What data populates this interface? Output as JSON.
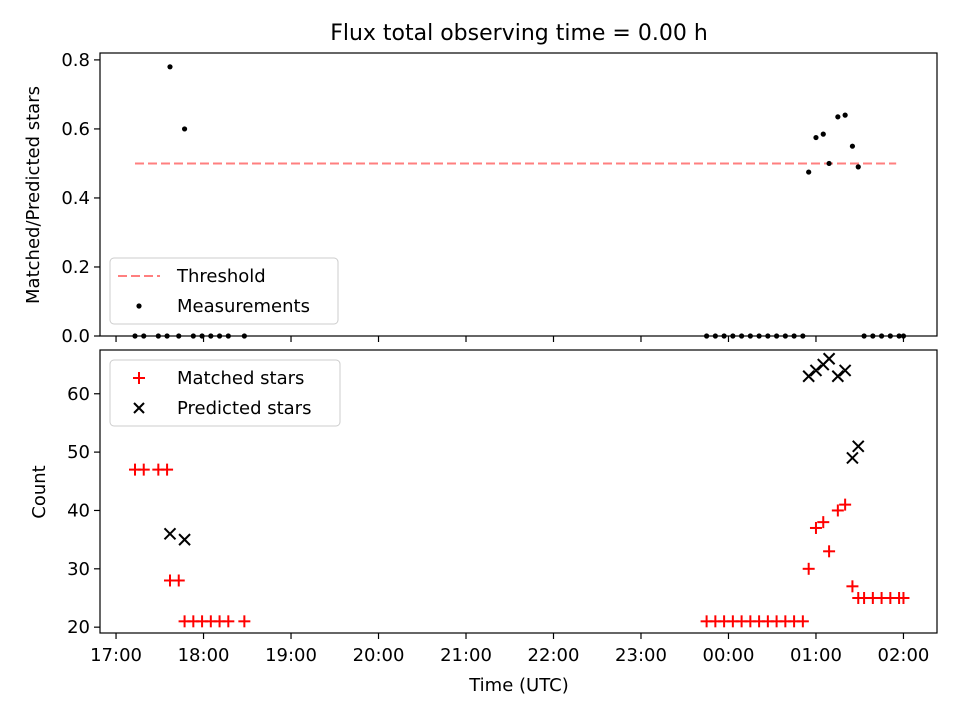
{
  "figure": {
    "title": "Flux total observing time = 0.00 h"
  },
  "chart_data": [
    {
      "type": "scatter",
      "xlabel": "",
      "ylabel": "Matched/Predicted stars",
      "ylim": [
        0.0,
        0.82
      ],
      "yticks": [
        0.0,
        0.2,
        0.4,
        0.6,
        0.8
      ],
      "ytick_labels": [
        "0.0",
        "0.2",
        "0.4",
        "0.6",
        "0.8"
      ],
      "x_range": [
        "16:49",
        "02:23"
      ],
      "xticks": [
        "17:00",
        "18:00",
        "19:00",
        "20:00",
        "21:00",
        "22:00",
        "23:00",
        "00:00",
        "01:00",
        "02:00"
      ],
      "xtick_labels_shown": false,
      "legend_position": "lower-left",
      "threshold": {
        "name": "Threshold",
        "value": 0.5,
        "x_start": "17:13",
        "x_end": "01:55",
        "color": "#ff7f7f",
        "style": "dashed"
      },
      "series": [
        {
          "name": "Measurements",
          "marker": "dot",
          "color": "#000000",
          "points": [
            [
              "17:13",
              0.0
            ],
            [
              "17:19",
              0.0
            ],
            [
              "17:29",
              0.0
            ],
            [
              "17:35",
              0.0
            ],
            [
              "17:37",
              0.78
            ],
            [
              "17:43",
              0.0
            ],
            [
              "17:47",
              0.6
            ],
            [
              "17:53",
              0.0
            ],
            [
              "17:59",
              0.0
            ],
            [
              "18:05",
              0.0
            ],
            [
              "18:11",
              0.0
            ],
            [
              "18:17",
              0.0
            ],
            [
              "18:28",
              0.0
            ],
            [
              "23:45",
              0.0
            ],
            [
              "23:51",
              0.0
            ],
            [
              "23:57",
              0.0
            ],
            [
              "00:03",
              0.0
            ],
            [
              "00:09",
              0.0
            ],
            [
              "00:15",
              0.0
            ],
            [
              "00:21",
              0.0
            ],
            [
              "00:27",
              0.0
            ],
            [
              "00:33",
              0.0
            ],
            [
              "00:39",
              0.0
            ],
            [
              "00:45",
              0.0
            ],
            [
              "00:51",
              0.0
            ],
            [
              "00:55",
              0.475
            ],
            [
              "01:00",
              0.575
            ],
            [
              "01:05",
              0.585
            ],
            [
              "01:09",
              0.5
            ],
            [
              "01:15",
              0.635
            ],
            [
              "01:20",
              0.64
            ],
            [
              "01:25",
              0.55
            ],
            [
              "01:29",
              0.49
            ],
            [
              "01:33",
              0.0
            ],
            [
              "01:39",
              0.0
            ],
            [
              "01:45",
              0.0
            ],
            [
              "01:51",
              0.0
            ],
            [
              "01:57",
              0.0
            ],
            [
              "02:00",
              0.0
            ]
          ]
        }
      ]
    },
    {
      "type": "scatter",
      "xlabel": "Time (UTC)",
      "ylabel": "Count",
      "ylim": [
        19,
        67.5
      ],
      "yticks": [
        20,
        30,
        40,
        50,
        60
      ],
      "ytick_labels": [
        "20",
        "30",
        "40",
        "50",
        "60"
      ],
      "x_range": [
        "16:49",
        "02:23"
      ],
      "xticks": [
        "17:00",
        "18:00",
        "19:00",
        "20:00",
        "21:00",
        "22:00",
        "23:00",
        "00:00",
        "01:00",
        "02:00"
      ],
      "xtick_labels": [
        "17:00",
        "18:00",
        "19:00",
        "20:00",
        "21:00",
        "22:00",
        "23:00",
        "00:00",
        "01:00",
        "02:00"
      ],
      "legend_position": "upper-left",
      "series": [
        {
          "name": "Matched stars",
          "marker": "plus",
          "color": "#ff0000",
          "points": [
            [
              "17:13",
              47
            ],
            [
              "17:19",
              47
            ],
            [
              "17:29",
              47
            ],
            [
              "17:35",
              47
            ],
            [
              "17:37",
              28
            ],
            [
              "17:43",
              28
            ],
            [
              "17:47",
              21
            ],
            [
              "17:53",
              21
            ],
            [
              "17:59",
              21
            ],
            [
              "18:05",
              21
            ],
            [
              "18:11",
              21
            ],
            [
              "18:17",
              21
            ],
            [
              "18:28",
              21
            ],
            [
              "23:45",
              21
            ],
            [
              "23:51",
              21
            ],
            [
              "23:57",
              21
            ],
            [
              "00:03",
              21
            ],
            [
              "00:09",
              21
            ],
            [
              "00:15",
              21
            ],
            [
              "00:21",
              21
            ],
            [
              "00:27",
              21
            ],
            [
              "00:33",
              21
            ],
            [
              "00:39",
              21
            ],
            [
              "00:45",
              21
            ],
            [
              "00:51",
              21
            ],
            [
              "00:55",
              30
            ],
            [
              "01:00",
              37
            ],
            [
              "01:05",
              38
            ],
            [
              "01:09",
              33
            ],
            [
              "01:15",
              40
            ],
            [
              "01:20",
              41
            ],
            [
              "01:25",
              27
            ],
            [
              "01:29",
              25
            ],
            [
              "01:33",
              25
            ],
            [
              "01:39",
              25
            ],
            [
              "01:45",
              25
            ],
            [
              "01:51",
              25
            ],
            [
              "01:57",
              25
            ],
            [
              "02:00",
              25
            ]
          ]
        },
        {
          "name": "Predicted stars",
          "marker": "x",
          "color": "#000000",
          "points": [
            [
              "17:37",
              36
            ],
            [
              "17:47",
              35
            ],
            [
              "00:55",
              63
            ],
            [
              "01:00",
              64
            ],
            [
              "01:05",
              65
            ],
            [
              "01:09",
              66
            ],
            [
              "01:15",
              63
            ],
            [
              "01:20",
              64
            ],
            [
              "01:25",
              49
            ],
            [
              "01:29",
              51
            ]
          ]
        }
      ]
    }
  ]
}
